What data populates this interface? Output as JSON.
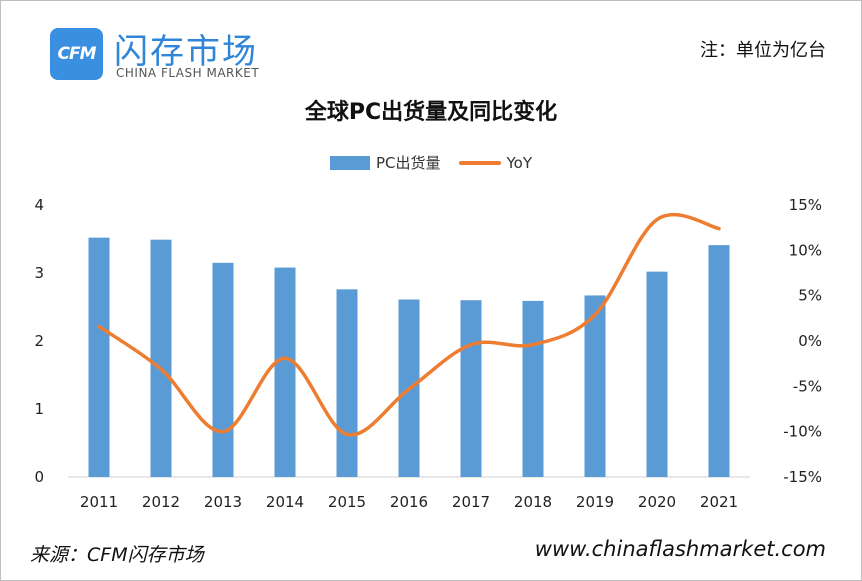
{
  "logo": {
    "mark": "CFM",
    "name_cn": "闪存市场",
    "name_en": "CHINA FLASH MARKET"
  },
  "unit_note": "注：单位为亿台",
  "footer": {
    "source": "来源：CFM闪存市场",
    "website": "www.chinaflashmarket.com"
  },
  "colors": {
    "bar": "#5b9bd5",
    "line": "#ed7d31",
    "logo": "#3a8fe0"
  },
  "chart_data": {
    "type": "bar",
    "title": "全球PC出货量及同比变化",
    "legend_position": "top",
    "grid": false,
    "categories": [
      "2011",
      "2012",
      "2013",
      "2014",
      "2015",
      "2016",
      "2017",
      "2018",
      "2019",
      "2020",
      "2021"
    ],
    "series": [
      {
        "name": "PC出货量",
        "type": "bar",
        "axis": "left",
        "values": [
          3.52,
          3.49,
          3.15,
          3.08,
          2.76,
          2.61,
          2.6,
          2.59,
          2.67,
          3.02,
          3.41
        ]
      },
      {
        "name": "YoY",
        "type": "line",
        "axis": "right",
        "values": [
          1.6,
          -3.1,
          -10.0,
          -1.9,
          -10.3,
          -5.3,
          -0.4,
          -0.4,
          2.9,
          13.4,
          12.4
        ]
      }
    ],
    "y_left": {
      "min": 0,
      "max": 4,
      "ticks": [
        "0",
        "1",
        "2",
        "3",
        "4"
      ]
    },
    "y_right": {
      "min": -15,
      "max": 15,
      "ticks": [
        "-15%",
        "-10%",
        "-5%",
        "0%",
        "5%",
        "10%",
        "15%"
      ]
    }
  }
}
